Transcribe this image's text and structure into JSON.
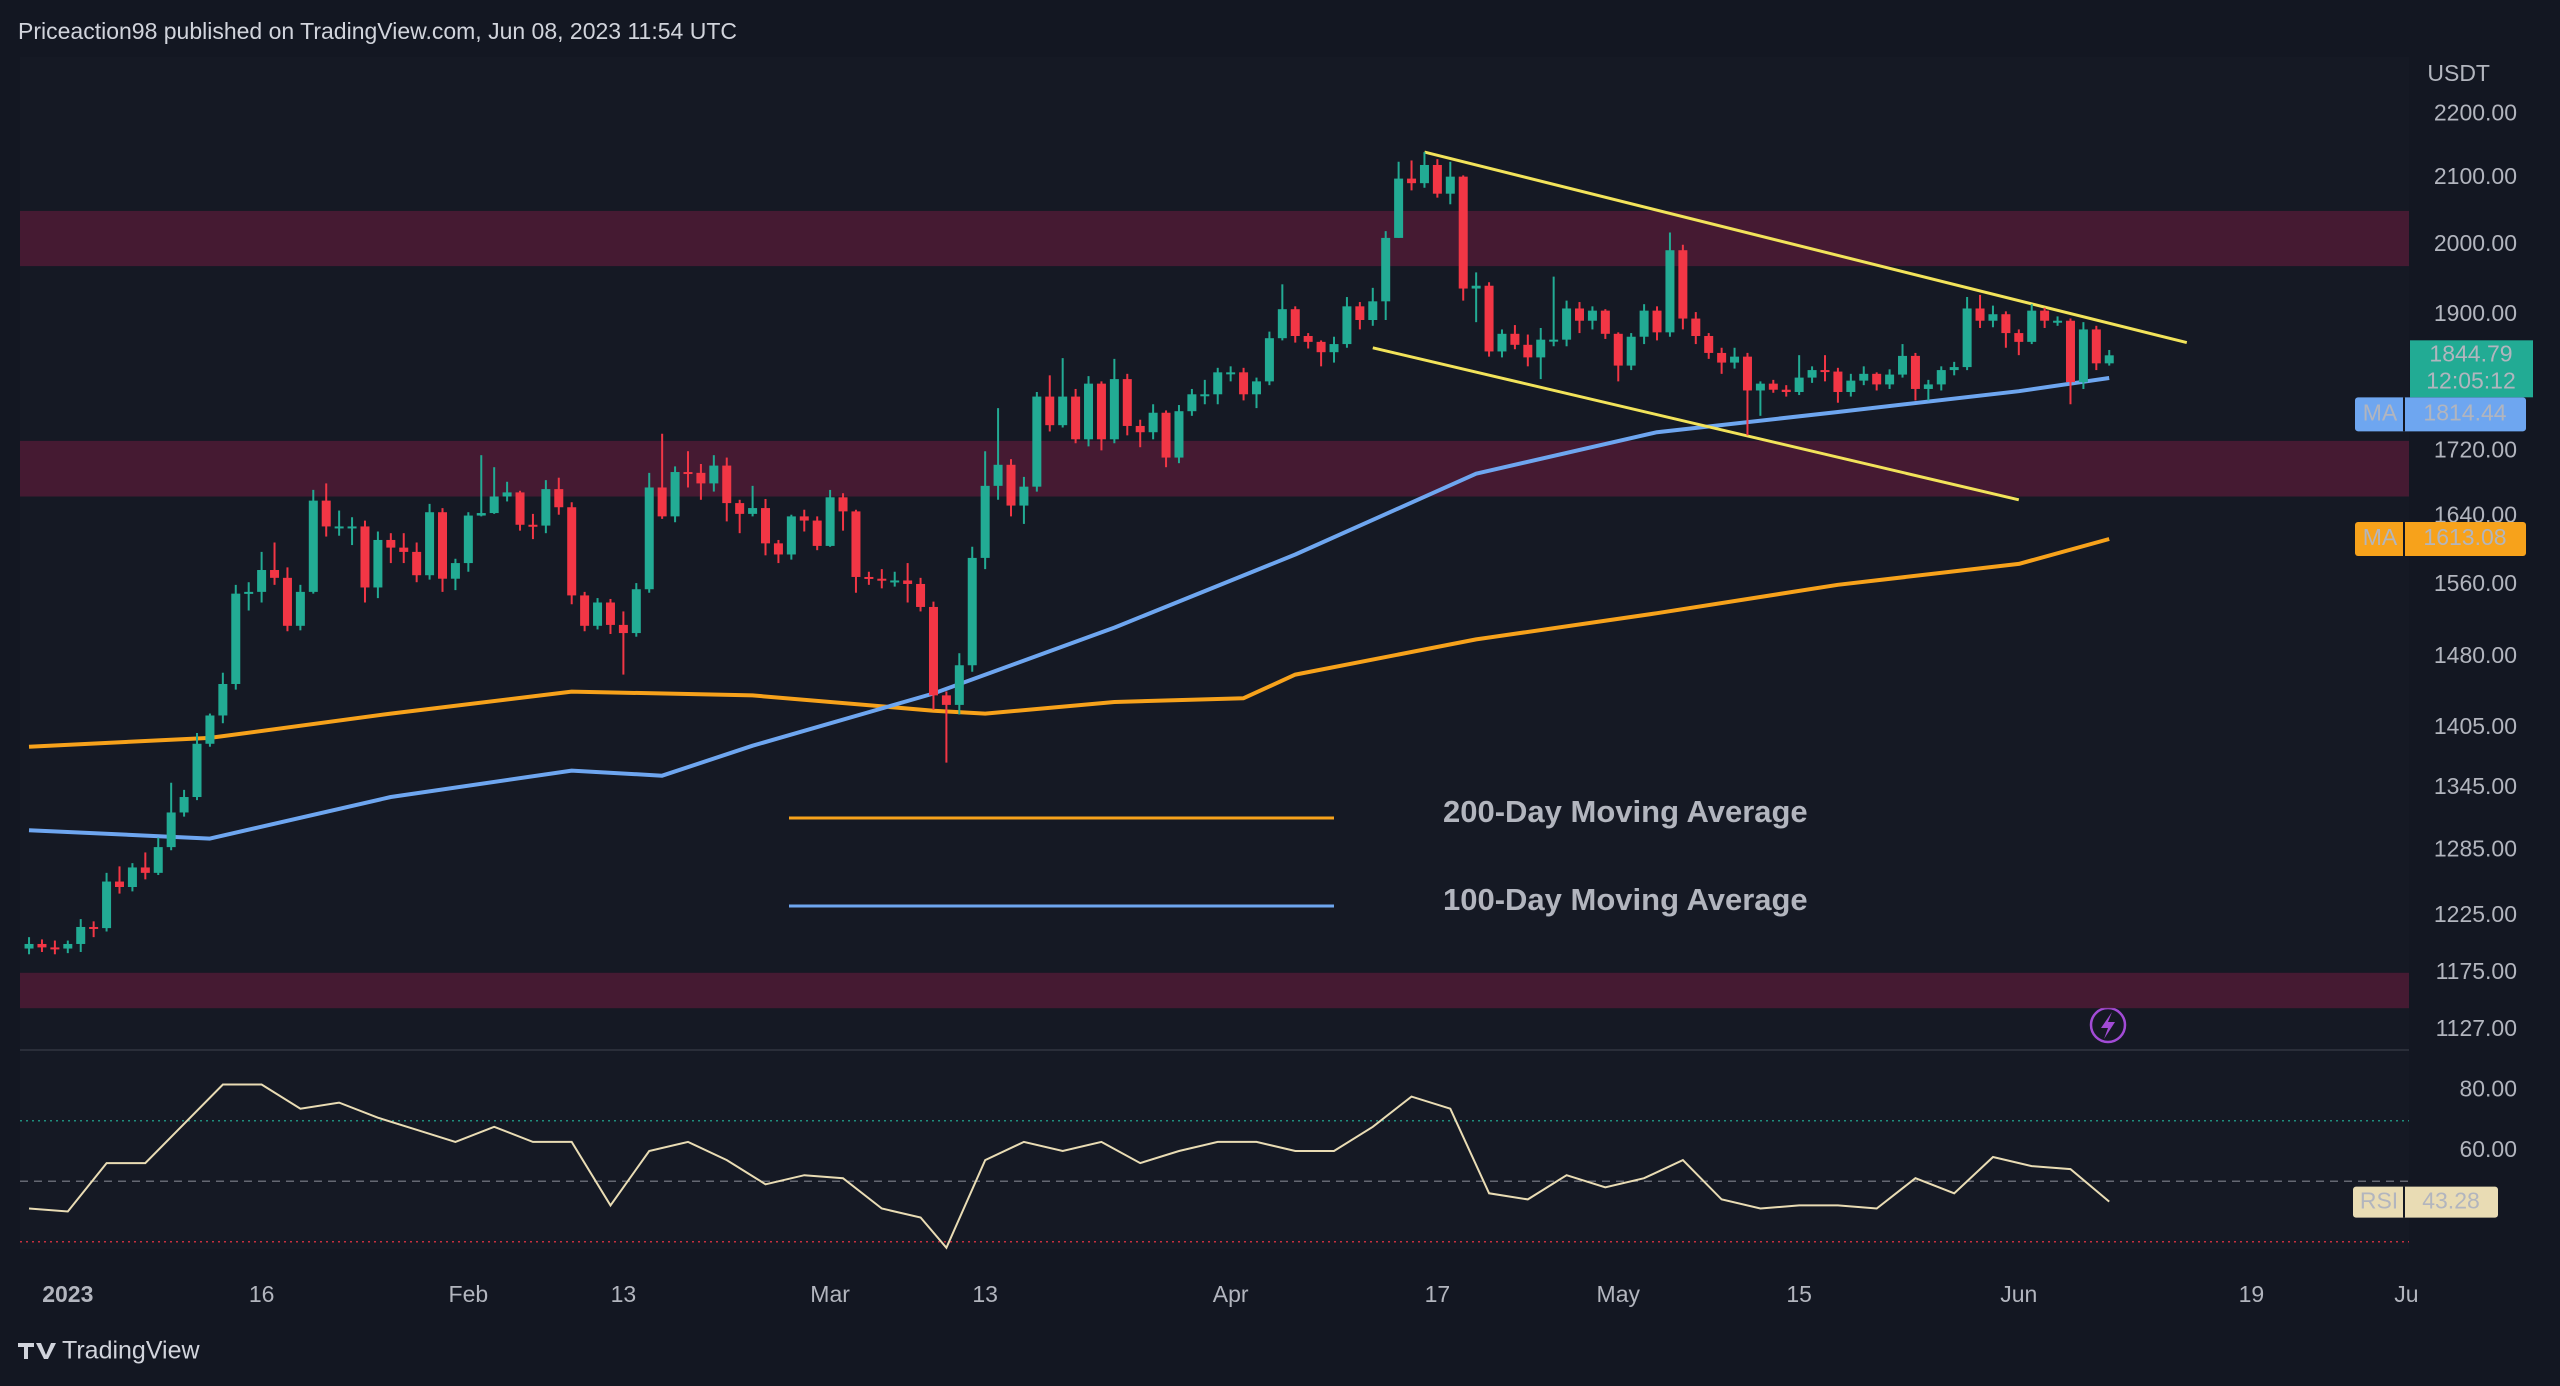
{
  "chart_data": {
    "type": "candlestick",
    "header": "Priceaction98 published on TradingView.com, Jun 08, 2023 11:54 UTC",
    "currency": "USDT",
    "footer": "TradingView",
    "log_scale": true,
    "up_color": "#22ab94",
    "down_color": "#f23645",
    "open": [
      1196,
      1200,
      1197,
      1196,
      1200,
      1215,
      1214,
      1256,
      1251,
      1269,
      1264,
      1288,
      1321,
      1336,
      1389,
      1418,
      1451,
      1550,
      1552,
      1577,
      1568,
      1514,
      1552,
      1659,
      1628,
      1628,
      1628,
      1557,
      1612,
      1603,
      1598,
      1571,
      1645,
      1567,
      1585,
      1641,
      1644,
      1664,
      1669,
      1630,
      1629,
      1673,
      1651,
      1548,
      1514,
      1540,
      1515,
      1506,
      1555,
      1675,
      1640,
      1694,
      1693,
      1680,
      1702,
      1656,
      1643,
      1650,
      1608,
      1595,
      1640,
      1635,
      1605,
      1663,
      1646,
      1569,
      1567,
      1565,
      1565,
      1561,
      1535,
      1439,
      1429,
      1471,
      1591,
      1677,
      1703,
      1653,
      1676,
      1790,
      1753,
      1790,
      1735,
      1807,
      1735,
      1813,
      1752,
      1744,
      1769,
      1712,
      1771,
      1793,
      1793,
      1822,
      1822,
      1793,
      1810,
      1868,
      1908,
      1871,
      1863,
      1849,
      1860,
      1912,
      1893,
      1919,
      2010,
      2099,
      2092,
      2120,
      2076,
      2102,
      1937,
      1941,
      1850,
      1874,
      1859,
      1842,
      1866,
      1866,
      1909,
      1892,
      1906,
      1874,
      1831,
      1870,
      1906,
      1876,
      1992,
      1895,
      1871,
      1848,
      1835,
      1843,
      1798,
      1807,
      1799,
      1796,
      1815,
      1825,
      1823,
      1796,
      1811,
      1820,
      1806,
      1819,
      1844,
      1800,
      1806,
      1825,
      1829,
      1909,
      1892,
      1901,
      1875,
      1863,
      1906,
      1892,
      1892,
      1809,
      1880,
      1834
    ],
    "high": [
      1206,
      1204,
      1203,
      1203,
      1222,
      1220,
      1264,
      1270,
      1273,
      1283,
      1297,
      1350,
      1343,
      1400,
      1420,
      1463,
      1560,
      1563,
      1598,
      1609,
      1580,
      1560,
      1672,
      1680,
      1647,
      1639,
      1635,
      1622,
      1620,
      1620,
      1609,
      1655,
      1650,
      1590,
      1645,
      1715,
      1700,
      1682,
      1671,
      1643,
      1684,
      1687,
      1657,
      1552,
      1545,
      1544,
      1530,
      1562,
      1693,
      1742,
      1701,
      1720,
      1704,
      1715,
      1712,
      1660,
      1677,
      1661,
      1612,
      1642,
      1648,
      1640,
      1672,
      1668,
      1648,
      1575,
      1578,
      1575,
      1585,
      1568,
      1541,
      1443,
      1484,
      1604,
      1720,
      1775,
      1710,
      1688,
      1796,
      1818,
      1841,
      1800,
      1817,
      1810,
      1840,
      1820,
      1760,
      1780,
      1772,
      1779,
      1800,
      1812,
      1828,
      1830,
      1828,
      1815,
      1877,
      1943,
      1912,
      1875,
      1865,
      1870,
      1925,
      1918,
      1938,
      2020,
      2125,
      2127,
      2140,
      2129,
      2125,
      2104,
      1960,
      1946,
      1880,
      1886,
      1873,
      1882,
      1954,
      1920,
      1918,
      1912,
      1908,
      1876,
      1875,
      1915,
      1912,
      2018,
      2000,
      1904,
      1875,
      1855,
      1855,
      1848,
      1810,
      1812,
      1805,
      1845,
      1830,
      1845,
      1828,
      1820,
      1830,
      1822,
      1826,
      1860,
      1848,
      1812,
      1830,
      1836,
      1925,
      1928,
      1913,
      1905,
      1880,
      1915,
      1910,
      1898,
      1895,
      1890,
      1885,
      1852
    ],
    "low": [
      1191,
      1193,
      1191,
      1192,
      1193,
      1206,
      1211,
      1245,
      1247,
      1258,
      1262,
      1285,
      1317,
      1333,
      1386,
      1410,
      1445,
      1531,
      1540,
      1560,
      1508,
      1509,
      1550,
      1616,
      1617,
      1606,
      1540,
      1545,
      1585,
      1585,
      1563,
      1566,
      1552,
      1554,
      1575,
      1640,
      1643,
      1658,
      1623,
      1613,
      1620,
      1642,
      1538,
      1508,
      1510,
      1505,
      1461,
      1502,
      1551,
      1637,
      1633,
      1675,
      1660,
      1670,
      1634,
      1620,
      1640,
      1594,
      1585,
      1589,
      1622,
      1600,
      1604,
      1623,
      1551,
      1560,
      1556,
      1558,
      1540,
      1530,
      1424,
      1370,
      1419,
      1464,
      1578,
      1660,
      1640,
      1631,
      1670,
      1745,
      1750,
      1730,
      1726,
      1721,
      1730,
      1740,
      1725,
      1735,
      1700,
      1705,
      1765,
      1780,
      1780,
      1810,
      1785,
      1775,
      1805,
      1865,
      1862,
      1854,
      1830,
      1835,
      1855,
      1880,
      1885,
      1893,
      2010,
      2081,
      2085,
      2070,
      2060,
      1920,
      1890,
      1843,
      1842,
      1853,
      1830,
      1813,
      1857,
      1857,
      1875,
      1880,
      1867,
      1810,
      1825,
      1860,
      1865,
      1870,
      1880,
      1860,
      1840,
      1820,
      1827,
      1740,
      1765,
      1795,
      1790,
      1792,
      1808,
      1810,
      1782,
      1790,
      1805,
      1798,
      1800,
      1815,
      1785,
      1785,
      1798,
      1818,
      1825,
      1882,
      1883,
      1855,
      1845,
      1860,
      1882,
      1885,
      1780,
      1800,
      1825,
      1831
    ],
    "close": [
      1200,
      1197,
      1196,
      1200,
      1215,
      1214,
      1256,
      1251,
      1269,
      1264,
      1288,
      1321,
      1336,
      1389,
      1418,
      1451,
      1550,
      1552,
      1577,
      1568,
      1514,
      1552,
      1659,
      1628,
      1628,
      1628,
      1557,
      1612,
      1603,
      1598,
      1571,
      1645,
      1567,
      1585,
      1641,
      1644,
      1664,
      1669,
      1630,
      1629,
      1673,
      1651,
      1548,
      1514,
      1540,
      1515,
      1506,
      1555,
      1675,
      1640,
      1694,
      1693,
      1680,
      1702,
      1656,
      1643,
      1650,
      1608,
      1595,
      1640,
      1635,
      1605,
      1663,
      1646,
      1569,
      1567,
      1565,
      1565,
      1561,
      1535,
      1439,
      1429,
      1471,
      1591,
      1677,
      1703,
      1653,
      1676,
      1790,
      1753,
      1790,
      1735,
      1807,
      1735,
      1813,
      1752,
      1744,
      1769,
      1712,
      1771,
      1793,
      1793,
      1822,
      1822,
      1793,
      1810,
      1868,
      1908,
      1871,
      1863,
      1849,
      1860,
      1912,
      1893,
      1919,
      2010,
      2099,
      2092,
      2120,
      2076,
      2102,
      1937,
      1941,
      1850,
      1874,
      1859,
      1842,
      1866,
      1866,
      1909,
      1892,
      1906,
      1874,
      1831,
      1870,
      1906,
      1876,
      1992,
      1895,
      1871,
      1848,
      1835,
      1843,
      1798,
      1807,
      1799,
      1796,
      1815,
      1825,
      1823,
      1796,
      1811,
      1820,
      1806,
      1819,
      1844,
      1800,
      1806,
      1825,
      1829,
      1909,
      1892,
      1901,
      1875,
      1863,
      1906,
      1892,
      1892,
      1809,
      1880,
      1834,
      1844.79
    ],
    "countdown": "12:05:12",
    "xlim": [
      -0.7,
      184.2
    ],
    "xticks": [
      {
        "value": 3,
        "label": "2023"
      },
      {
        "value": 18,
        "label": "16"
      },
      {
        "value": 34,
        "label": "Feb"
      },
      {
        "value": 46,
        "label": "13"
      },
      {
        "value": 62,
        "label": "Mar"
      },
      {
        "value": 74,
        "label": "13"
      },
      {
        "value": 93,
        "label": "Apr"
      },
      {
        "value": 109,
        "label": "17"
      },
      {
        "value": 123,
        "label": "May"
      },
      {
        "value": 137,
        "label": "15"
      },
      {
        "value": 154,
        "label": "Jun"
      },
      {
        "value": 172,
        "label": "19"
      },
      {
        "value": 184,
        "label": "Ju"
      }
    ],
    "ylim": [
      1113,
      2294
    ],
    "yticks": [
      {
        "value": 2200,
        "label": "2200.00"
      },
      {
        "value": 2100,
        "label": "2100.00"
      },
      {
        "value": 2000,
        "label": "2000.00"
      },
      {
        "value": 1900,
        "label": "1900.00"
      },
      {
        "value": 1720,
        "label": "1720.00"
      },
      {
        "value": 1640,
        "label": "1640.00"
      },
      {
        "value": 1560,
        "label": "1560.00"
      },
      {
        "value": 1480,
        "label": "1480.00"
      },
      {
        "value": 1405,
        "label": "1405.00"
      },
      {
        "value": 1345,
        "label": "1345.00"
      },
      {
        "value": 1285,
        "label": "1285.00"
      },
      {
        "value": 1225,
        "label": "1225.00"
      },
      {
        "value": 1175,
        "label": "1175.00"
      },
      {
        "value": 1127,
        "label": "1127.00"
      }
    ],
    "zones": [
      {
        "low": 1969,
        "high": 2050
      },
      {
        "low": 1664,
        "high": 1733
      },
      {
        "low": 1145,
        "high": 1175
      }
    ],
    "zone_color": "#4a1b34",
    "trendlines": [
      {
        "x": [
          108,
          167
        ],
        "values": [
          2140,
          1862
        ]
      },
      {
        "x": [
          104,
          154
        ],
        "values": [
          1855,
          1660
        ]
      }
    ],
    "trendline_color": "#f2e35a",
    "series": [
      {
        "name": "200-Day Moving Average",
        "label": "MA",
        "color": "#f7a21b",
        "x": [
          0,
          14,
          28,
          42,
          56,
          70,
          74,
          84,
          94,
          98,
          112,
          126,
          140,
          154,
          161
        ],
        "values": [
          1386,
          1395,
          1420,
          1443,
          1439,
          1423,
          1420,
          1432,
          1436,
          1461,
          1499,
          1528,
          1560,
          1584,
          1613.08
        ]
      },
      {
        "name": "100-Day Moving Average",
        "label": "MA",
        "color": "#6ea6f0",
        "x": [
          0,
          14,
          28,
          42,
          49,
          56,
          70,
          84,
          98,
          112,
          126,
          140,
          154,
          161
        ],
        "values": [
          1304,
          1296,
          1336,
          1362,
          1357,
          1387,
          1441,
          1512,
          1595,
          1692,
          1744,
          1770,
          1797,
          1814.44
        ]
      }
    ],
    "rsi": {
      "name": "RSI",
      "color": "#e9dcb4",
      "x": [
        0,
        3,
        6,
        9,
        12,
        15,
        18,
        21,
        24,
        27,
        30,
        33,
        36,
        39,
        42,
        45,
        48,
        51,
        54,
        57,
        60,
        63,
        66,
        69,
        71,
        74,
        77,
        80,
        83,
        86,
        89,
        92,
        95,
        98,
        101,
        104,
        107,
        110,
        113,
        116,
        119,
        122,
        125,
        128,
        131,
        134,
        137,
        140,
        143,
        146,
        149,
        152,
        155,
        158,
        161
      ],
      "values": [
        41,
        40,
        56,
        56,
        69,
        82,
        82,
        74,
        76,
        71,
        67,
        63,
        68,
        63,
        63,
        42,
        60,
        63,
        57,
        49,
        52,
        51,
        41,
        38,
        28,
        57,
        63,
        60,
        63,
        56,
        60,
        63,
        63,
        60,
        60,
        68,
        78,
        74,
        46,
        44,
        52,
        48,
        51,
        57,
        44,
        41,
        42,
        42,
        41,
        51,
        46,
        58,
        55,
        54,
        43.28
      ],
      "ylim": [
        27.6,
        92.4
      ],
      "yticks": [
        {
          "value": 80,
          "label": "80.00"
        },
        {
          "value": 60,
          "label": "60.00"
        }
      ],
      "levels": [
        70,
        50,
        30
      ]
    }
  }
}
